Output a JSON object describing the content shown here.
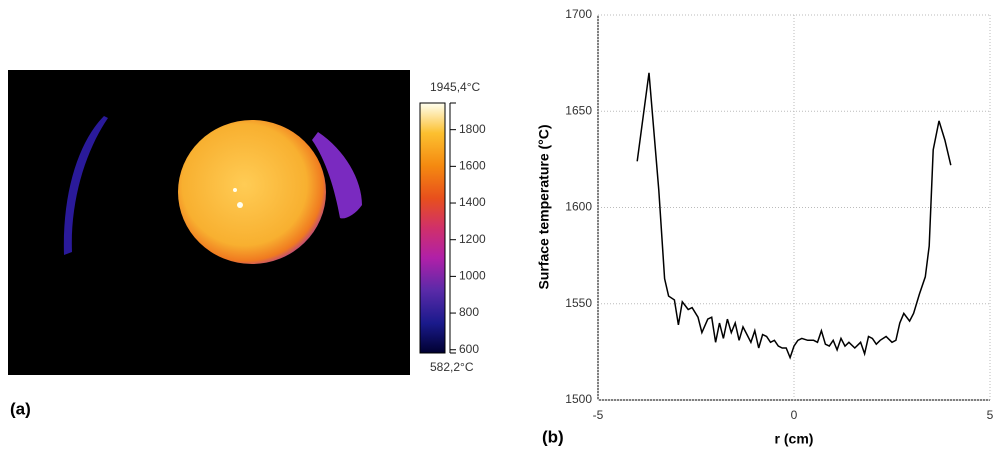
{
  "chart_data": [
    {
      "type": "thermal-image",
      "panel_label": "(a)",
      "colorbar": {
        "lim": [
          {
            "value": 582.2,
            "label": "582,2°C"
          },
          {
            "value": 1945.4,
            "label": "1945,4°C"
          }
        ],
        "ticks": [
          600,
          800,
          1000,
          1200,
          1400,
          1600,
          1800
        ]
      }
    },
    {
      "type": "line",
      "panel_label": "(b)",
      "xlabel": "r (cm)",
      "ylabel": "Surface temperature (°C)",
      "color": "#000000",
      "grid": true,
      "xlim": [
        -5,
        5
      ],
      "xticks": [
        -5,
        0,
        5
      ],
      "ylim": [
        1500,
        1700
      ],
      "yticks": [
        1500,
        1550,
        1600,
        1650,
        1700
      ],
      "x": [
        -4.0,
        -3.7,
        -3.45,
        -3.3,
        -3.2,
        -3.05,
        -2.95,
        -2.85,
        -2.7,
        -2.6,
        -2.45,
        -2.35,
        -2.2,
        -2.1,
        -2.0,
        -1.9,
        -1.8,
        -1.7,
        -1.6,
        -1.5,
        -1.4,
        -1.3,
        -1.2,
        -1.1,
        -1.0,
        -0.9,
        -0.8,
        -0.7,
        -0.6,
        -0.5,
        -0.4,
        -0.3,
        -0.2,
        -0.1,
        0.0,
        0.1,
        0.2,
        0.35,
        0.5,
        0.6,
        0.7,
        0.8,
        0.9,
        1.0,
        1.1,
        1.2,
        1.3,
        1.4,
        1.55,
        1.7,
        1.8,
        1.9,
        2.0,
        2.1,
        2.2,
        2.35,
        2.5,
        2.6,
        2.7,
        2.8,
        2.95,
        3.05,
        3.2,
        3.35,
        3.45,
        3.55,
        3.7,
        3.85,
        4.0
      ],
      "values": [
        1624,
        1670,
        1609,
        1563,
        1554,
        1552,
        1539,
        1551,
        1547,
        1548,
        1543,
        1535,
        1542,
        1543,
        1530,
        1540,
        1532,
        1542,
        1535,
        1540,
        1531,
        1538,
        1534,
        1530,
        1536,
        1527,
        1534,
        1533,
        1530,
        1531,
        1528,
        1527,
        1527,
        1522,
        1528,
        1531,
        1532,
        1531,
        1531,
        1530,
        1536,
        1529,
        1528,
        1531,
        1526,
        1532,
        1528,
        1530,
        1527,
        1530,
        1524,
        1533,
        1532,
        1529,
        1531,
        1533,
        1530,
        1531,
        1540,
        1545,
        1541,
        1545,
        1555,
        1564,
        1580,
        1630,
        1645,
        1635,
        1622
      ]
    }
  ]
}
